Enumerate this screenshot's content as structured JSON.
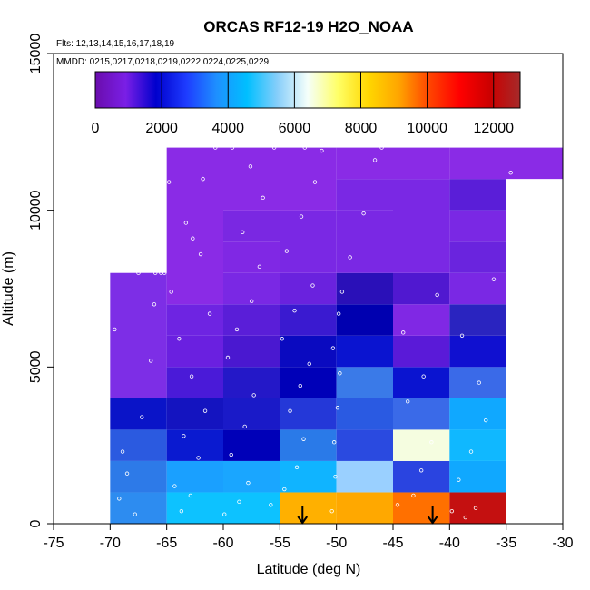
{
  "chart_data": {
    "type": "heatmap",
    "title": "ORCAS RF12-19 H2O_NOAA",
    "flights_note": "Flts: 12,13,14,15,16,17,18,19",
    "dates_note": "MMDD: 0215,0217,0218,0219,0222,0224,0225,0229",
    "xlabel": "Latitude (deg N)",
    "ylabel": "Altitude (m)",
    "xlim": [
      -75,
      -30
    ],
    "ylim": [
      0,
      15000
    ],
    "x_ticks": [
      -75,
      -70,
      -65,
      -60,
      -55,
      -50,
      -45,
      -40,
      -35,
      -30
    ],
    "y_ticks": [
      0,
      5000,
      10000,
      15000
    ],
    "colorbar": {
      "min": 0,
      "max": 12800,
      "ticks": [
        0,
        2000,
        4000,
        6000,
        8000,
        10000,
        12000
      ],
      "stops": [
        "#6a0dad",
        "#7a1fe6",
        "#0000cd",
        "#1e3cff",
        "#1e90ff",
        "#00bfff",
        "#87cefa",
        "#f5fffa",
        "#ffff66",
        "#ffd700",
        "#ffa500",
        "#ff4500",
        "#ff0000",
        "#cc0000",
        "#a52a2a"
      ]
    },
    "bins": [
      {
        "lat0": -70,
        "lat1": -65,
        "alt0": 0,
        "alt1": 1000,
        "color": "#2d8cf0"
      },
      {
        "lat0": -70,
        "lat1": -65,
        "alt0": 1000,
        "alt1": 2000,
        "color": "#2d7ae8"
      },
      {
        "lat0": -70,
        "lat1": -65,
        "alt0": 2000,
        "alt1": 3000,
        "color": "#2b5ae0"
      },
      {
        "lat0": -70,
        "lat1": -65,
        "alt0": 3000,
        "alt1": 4000,
        "color": "#0a14c8"
      },
      {
        "lat0": -70,
        "lat1": -65,
        "alt0": 4000,
        "alt1": 8000,
        "color": "#7d2ee6"
      },
      {
        "lat0": -65,
        "lat1": -60,
        "alt0": 0,
        "alt1": 1000,
        "color": "#0dc2ff"
      },
      {
        "lat0": -65,
        "lat1": -60,
        "alt0": 1000,
        "alt1": 2000,
        "color": "#1aa0ff"
      },
      {
        "lat0": -65,
        "lat1": -60,
        "alt0": 2000,
        "alt1": 3000,
        "color": "#0a1ad0"
      },
      {
        "lat0": -65,
        "lat1": -60,
        "alt0": 3000,
        "alt1": 4000,
        "color": "#1414c0"
      },
      {
        "lat0": -65,
        "lat1": -60,
        "alt0": 4000,
        "alt1": 5000,
        "color": "#4a1ad8"
      },
      {
        "lat0": -65,
        "lat1": -60,
        "alt0": 5000,
        "alt1": 6000,
        "color": "#6a20e0"
      },
      {
        "lat0": -65,
        "lat1": -60,
        "alt0": 6000,
        "alt1": 7000,
        "color": "#6e24e2"
      },
      {
        "lat0": -65,
        "lat1": -60,
        "alt0": 7000,
        "alt1": 12000,
        "color": "#8a2be6"
      },
      {
        "lat0": -60,
        "lat1": -55,
        "alt0": 0,
        "alt1": 1000,
        "color": "#0dc2ff"
      },
      {
        "lat0": -60,
        "lat1": -55,
        "alt0": 1000,
        "alt1": 2000,
        "color": "#1aa6ff"
      },
      {
        "lat0": -60,
        "lat1": -55,
        "alt0": 2000,
        "alt1": 3000,
        "color": "#0000b8"
      },
      {
        "lat0": -60,
        "lat1": -55,
        "alt0": 3000,
        "alt1": 4000,
        "color": "#1a1ac8"
      },
      {
        "lat0": -60,
        "lat1": -55,
        "alt0": 4000,
        "alt1": 5000,
        "color": "#2418c8"
      },
      {
        "lat0": -60,
        "lat1": -55,
        "alt0": 5000,
        "alt1": 6000,
        "color": "#4a18d0"
      },
      {
        "lat0": -60,
        "lat1": -55,
        "alt0": 6000,
        "alt1": 7000,
        "color": "#5a1ed8"
      },
      {
        "lat0": -60,
        "lat1": -55,
        "alt0": 7000,
        "alt1": 8000,
        "color": "#7a28e4"
      },
      {
        "lat0": -60,
        "lat1": -55,
        "alt0": 8000,
        "alt1": 9000,
        "color": "#8028e4"
      },
      {
        "lat0": -60,
        "lat1": -55,
        "alt0": 9000,
        "alt1": 10000,
        "color": "#7a28e2"
      },
      {
        "lat0": -60,
        "lat1": -55,
        "alt0": 10000,
        "alt1": 12000,
        "color": "#8a2be6"
      },
      {
        "lat0": -55,
        "lat1": -50,
        "alt0": 0,
        "alt1": 1000,
        "color": "#ffb000"
      },
      {
        "lat0": -55,
        "lat1": -50,
        "alt0": 1000,
        "alt1": 2000,
        "color": "#10b4ff"
      },
      {
        "lat0": -55,
        "lat1": -50,
        "alt0": 2000,
        "alt1": 3000,
        "color": "#2a7ae8"
      },
      {
        "lat0": -55,
        "lat1": -50,
        "alt0": 3000,
        "alt1": 4000,
        "color": "#2438d8"
      },
      {
        "lat0": -55,
        "lat1": -50,
        "alt0": 4000,
        "alt1": 5000,
        "color": "#0000b8"
      },
      {
        "lat0": -55,
        "lat1": -50,
        "alt0": 5000,
        "alt1": 6000,
        "color": "#0a0ac0"
      },
      {
        "lat0": -55,
        "lat1": -50,
        "alt0": 6000,
        "alt1": 7000,
        "color": "#3a1ad0"
      },
      {
        "lat0": -55,
        "lat1": -50,
        "alt0": 7000,
        "alt1": 8000,
        "color": "#6a22de"
      },
      {
        "lat0": -55,
        "lat1": -50,
        "alt0": 8000,
        "alt1": 10000,
        "color": "#7a28e4"
      },
      {
        "lat0": -55,
        "lat1": -50,
        "alt0": 10000,
        "alt1": 12000,
        "color": "#8a2be6"
      },
      {
        "lat0": -50,
        "lat1": -45,
        "alt0": 0,
        "alt1": 1000,
        "color": "#ffa800"
      },
      {
        "lat0": -50,
        "lat1": -45,
        "alt0": 1000,
        "alt1": 2000,
        "color": "#9ad0ff"
      },
      {
        "lat0": -50,
        "lat1": -45,
        "alt0": 2000,
        "alt1": 3000,
        "color": "#2a4ae0"
      },
      {
        "lat0": -50,
        "lat1": -45,
        "alt0": 3000,
        "alt1": 4000,
        "color": "#2a5ae2"
      },
      {
        "lat0": -50,
        "lat1": -45,
        "alt0": 4000,
        "alt1": 5000,
        "color": "#3a7ae8"
      },
      {
        "lat0": -50,
        "lat1": -45,
        "alt0": 5000,
        "alt1": 6000,
        "color": "#0a14d0"
      },
      {
        "lat0": -50,
        "lat1": -45,
        "alt0": 6000,
        "alt1": 7000,
        "color": "#0000b0"
      },
      {
        "lat0": -50,
        "lat1": -45,
        "alt0": 7000,
        "alt1": 8000,
        "color": "#2a10b8"
      },
      {
        "lat0": -50,
        "lat1": -45,
        "alt0": 8000,
        "alt1": 10000,
        "color": "#7a28e4"
      },
      {
        "lat0": -50,
        "lat1": -45,
        "alt0": 10000,
        "alt1": 11000,
        "color": "#7a28e4"
      },
      {
        "lat0": -50,
        "lat1": -45,
        "alt0": 11000,
        "alt1": 12000,
        "color": "#8a2be6"
      },
      {
        "lat0": -45,
        "lat1": -40,
        "alt0": 0,
        "alt1": 1000,
        "color": "#ff7000"
      },
      {
        "lat0": -45,
        "lat1": -40,
        "alt0": 1000,
        "alt1": 2000,
        "color": "#2a44e0"
      },
      {
        "lat0": -45,
        "lat1": -40,
        "alt0": 2000,
        "alt1": 3000,
        "color": "#f5fde0"
      },
      {
        "lat0": -45,
        "lat1": -40,
        "alt0": 3000,
        "alt1": 4000,
        "color": "#3a6ae8"
      },
      {
        "lat0": -45,
        "lat1": -40,
        "alt0": 4000,
        "alt1": 5000,
        "color": "#0a14d0"
      },
      {
        "lat0": -45,
        "lat1": -40,
        "alt0": 5000,
        "alt1": 6000,
        "color": "#5a1ad8"
      },
      {
        "lat0": -45,
        "lat1": -40,
        "alt0": 6000,
        "alt1": 7000,
        "color": "#8028e4"
      },
      {
        "lat0": -45,
        "lat1": -40,
        "alt0": 7000,
        "alt1": 8000,
        "color": "#5018d0"
      },
      {
        "lat0": -45,
        "lat1": -40,
        "alt0": 8000,
        "alt1": 11000,
        "color": "#7a28e4"
      },
      {
        "lat0": -45,
        "lat1": -40,
        "alt0": 11000,
        "alt1": 12000,
        "color": "#8a2be6"
      },
      {
        "lat0": -40,
        "lat1": -35,
        "alt0": 0,
        "alt1": 1000,
        "color": "#c41010"
      },
      {
        "lat0": -40,
        "lat1": -35,
        "alt0": 1000,
        "alt1": 2000,
        "color": "#10a8ff"
      },
      {
        "lat0": -40,
        "lat1": -35,
        "alt0": 2000,
        "alt1": 3000,
        "color": "#10b8ff"
      },
      {
        "lat0": -40,
        "lat1": -35,
        "alt0": 3000,
        "alt1": 4000,
        "color": "#10a8ff"
      },
      {
        "lat0": -40,
        "lat1": -35,
        "alt0": 4000,
        "alt1": 5000,
        "color": "#3a6ae8"
      },
      {
        "lat0": -40,
        "lat1": -35,
        "alt0": 5000,
        "alt1": 6000,
        "color": "#1010d0"
      },
      {
        "lat0": -40,
        "lat1": -35,
        "alt0": 6000,
        "alt1": 7000,
        "color": "#2a24c0"
      },
      {
        "lat0": -40,
        "lat1": -35,
        "alt0": 7000,
        "alt1": 8000,
        "color": "#7a28e4"
      },
      {
        "lat0": -40,
        "lat1": -35,
        "alt0": 8000,
        "alt1": 9000,
        "color": "#6a24de"
      },
      {
        "lat0": -40,
        "lat1": -35,
        "alt0": 9000,
        "alt1": 10000,
        "color": "#7a28e4"
      },
      {
        "lat0": -40,
        "lat1": -35,
        "alt0": 10000,
        "alt1": 11000,
        "color": "#5a1ed8"
      },
      {
        "lat0": -40,
        "lat1": -35,
        "alt0": 11000,
        "alt1": 12000,
        "color": "#8a2be6"
      },
      {
        "lat0": -35,
        "lat1": -30,
        "alt0": 11000,
        "alt1": 12000,
        "color": "#8a2be6"
      }
    ],
    "sample_points": [
      [
        -69.2,
        800
      ],
      [
        -68.5,
        1600
      ],
      [
        -67.8,
        300
      ],
      [
        -68.9,
        2300
      ],
      [
        -67.2,
        3400
      ],
      [
        -66.4,
        5200
      ],
      [
        -69.6,
        6200
      ],
      [
        -66.1,
        7000
      ],
      [
        -67.5,
        8000
      ],
      [
        -66.0,
        8000
      ],
      [
        -65.5,
        8000
      ],
      [
        -65.2,
        8000
      ],
      [
        -64.3,
        1200
      ],
      [
        -63.7,
        400
      ],
      [
        -62.9,
        900
      ],
      [
        -62.2,
        2100
      ],
      [
        -63.5,
        2800
      ],
      [
        -61.6,
        3600
      ],
      [
        -62.8,
        4700
      ],
      [
        -63.9,
        5900
      ],
      [
        -61.2,
        6700
      ],
      [
        -64.6,
        7400
      ],
      [
        -62.0,
        8600
      ],
      [
        -63.3,
        9600
      ],
      [
        -61.8,
        11000
      ],
      [
        -60.7,
        12000
      ],
      [
        -59.9,
        300
      ],
      [
        -58.6,
        700
      ],
      [
        -57.8,
        1300
      ],
      [
        -59.3,
        2200
      ],
      [
        -58.1,
        3100
      ],
      [
        -57.3,
        4100
      ],
      [
        -59.6,
        5300
      ],
      [
        -58.8,
        6200
      ],
      [
        -57.5,
        7100
      ],
      [
        -56.8,
        8200
      ],
      [
        -58.3,
        9300
      ],
      [
        -56.5,
        10400
      ],
      [
        -57.6,
        11400
      ],
      [
        -55.8,
        600
      ],
      [
        -54.6,
        1100
      ],
      [
        -53.5,
        1800
      ],
      [
        -52.9,
        2700
      ],
      [
        -54.1,
        3600
      ],
      [
        -53.2,
        4400
      ],
      [
        -52.4,
        5100
      ],
      [
        -54.8,
        5900
      ],
      [
        -53.7,
        6800
      ],
      [
        -52.1,
        7600
      ],
      [
        -54.4,
        8700
      ],
      [
        -53.1,
        9800
      ],
      [
        -51.9,
        10900
      ],
      [
        -51.3,
        11900
      ],
      [
        -50.4,
        400
      ],
      [
        -50.1,
        1500
      ],
      [
        -50.2,
        2600
      ],
      [
        -49.9,
        3700
      ],
      [
        -49.7,
        4800
      ],
      [
        -50.3,
        5600
      ],
      [
        -49.8,
        6700
      ],
      [
        -49.5,
        7400
      ],
      [
        -48.8,
        8500
      ],
      [
        -47.6,
        9900
      ],
      [
        -46.6,
        11600
      ],
      [
        -46.0,
        12000
      ],
      [
        -44.6,
        600
      ],
      [
        -43.2,
        900
      ],
      [
        -42.5,
        1700
      ],
      [
        -41.6,
        2600
      ],
      [
        -43.7,
        3900
      ],
      [
        -42.3,
        4700
      ],
      [
        -44.1,
        6100
      ],
      [
        -41.1,
        7300
      ],
      [
        -39.8,
        400
      ],
      [
        -38.6,
        200
      ],
      [
        -37.7,
        500
      ],
      [
        -39.2,
        1400
      ],
      [
        -38.1,
        2300
      ],
      [
        -36.8,
        3300
      ],
      [
        -37.4,
        4500
      ],
      [
        -38.9,
        6000
      ],
      [
        -36.1,
        7800
      ],
      [
        -34.6,
        11200
      ],
      [
        -52.8,
        12000
      ],
      [
        -55.5,
        12000
      ],
      [
        -59.2,
        12000
      ],
      [
        -62.7,
        9100
      ],
      [
        -64.8,
        10900
      ]
    ],
    "arrows_at_latitude": [
      -53,
      -41.5
    ]
  }
}
